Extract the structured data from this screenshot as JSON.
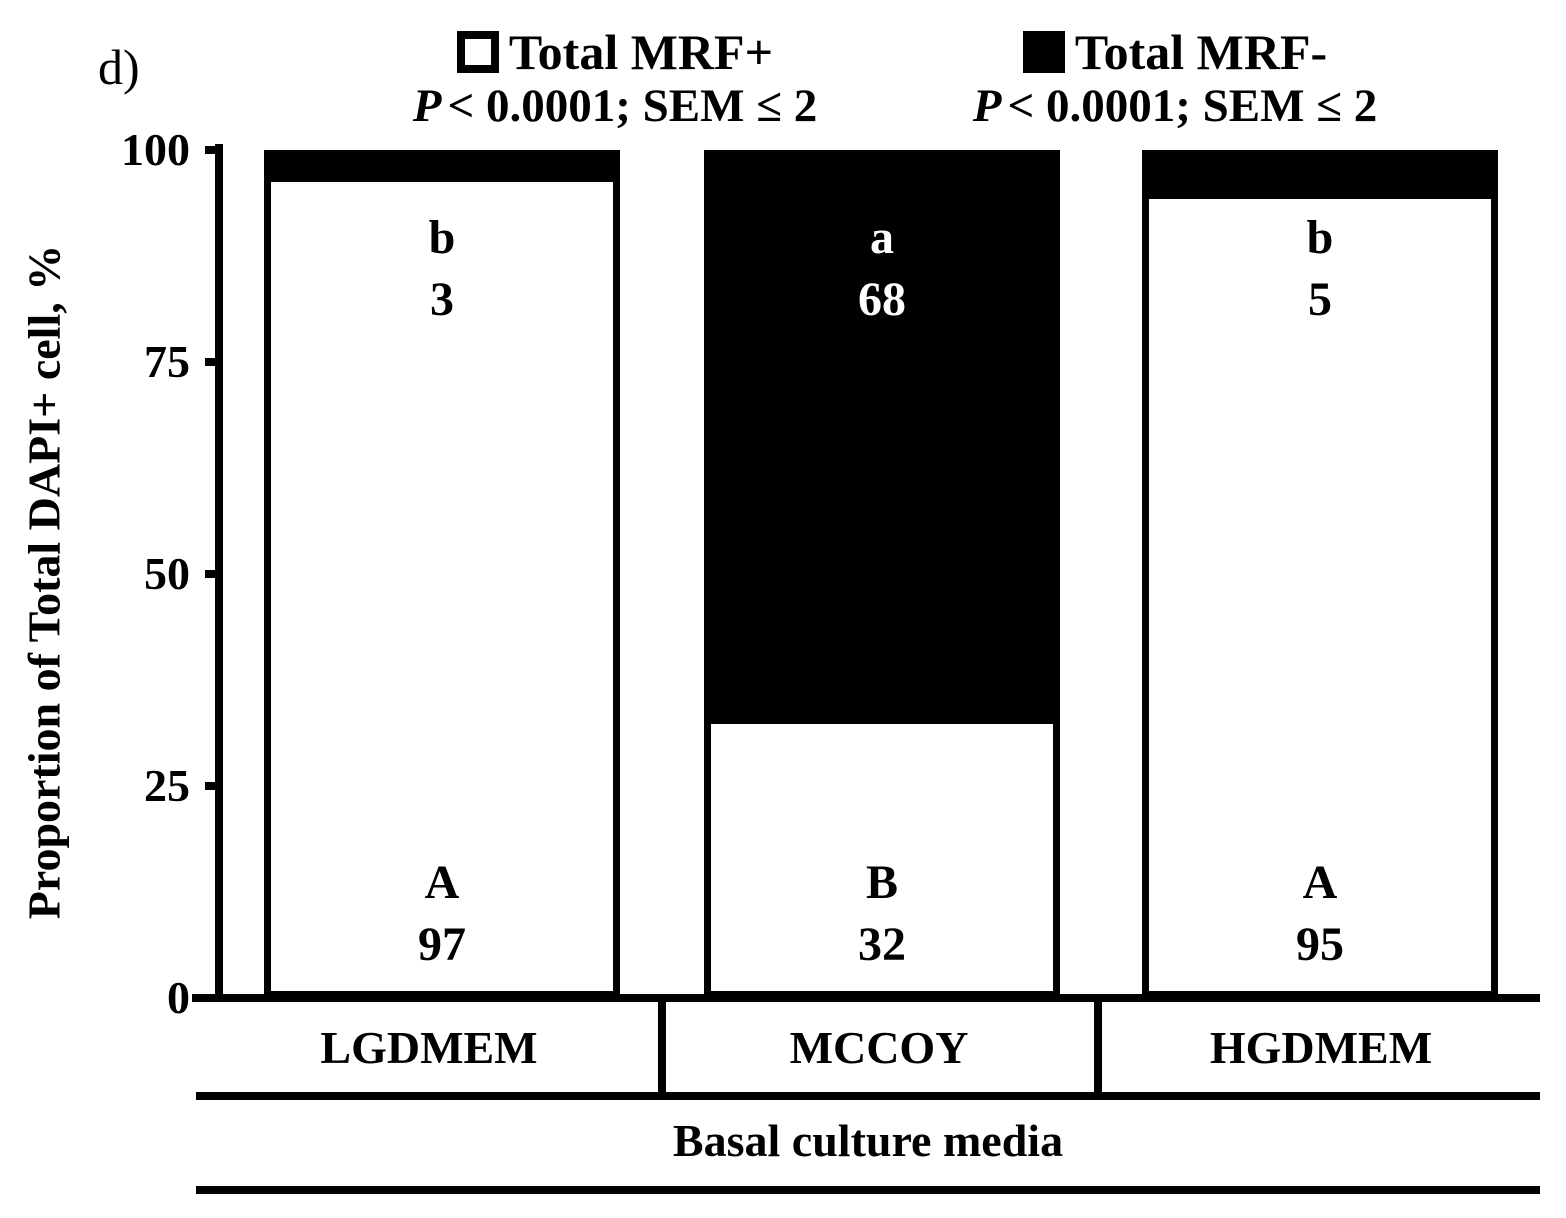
{
  "panel_label": "d)",
  "legend": {
    "entries": [
      {
        "label": "Total MRF+",
        "swatch": "white-square",
        "stat_p": "P",
        "stat_rest": "< 0.0001; SEM ≤ 2"
      },
      {
        "label": "Total MRF-",
        "swatch": "black-square",
        "stat_p": "P",
        "stat_rest": "< 0.0001; SEM ≤ 2"
      }
    ]
  },
  "y_axis": {
    "title": "Proportion of Total DAPI+ cell, %",
    "tick_labels": [
      "100",
      "75",
      "50",
      "25",
      "0"
    ]
  },
  "x_axis": {
    "categories": [
      "LGDMEM",
      "MCCOY",
      "HGDMEM"
    ],
    "group_label": "Basal culture media"
  },
  "bars": [
    {
      "category": "LGDMEM",
      "top_letter": "b",
      "top_value": "3",
      "bottom_letter": "A",
      "bottom_value": "97"
    },
    {
      "category": "MCCOY",
      "top_letter": "a",
      "top_value": "68",
      "bottom_letter": "B",
      "bottom_value": "32"
    },
    {
      "category": "HGDMEM",
      "top_letter": "b",
      "top_value": "5",
      "bottom_letter": "A",
      "bottom_value": "95"
    }
  ],
  "chart_data": {
    "type": "bar",
    "stacked": true,
    "categories": [
      "LGDMEM",
      "MCCOY",
      "HGDMEM"
    ],
    "series": [
      {
        "name": "Total MRF+",
        "color": "#ffffff",
        "values": [
          97,
          32,
          95
        ],
        "significance_letters": [
          "A",
          "B",
          "A"
        ]
      },
      {
        "name": "Total MRF-",
        "color": "#000000",
        "values": [
          3,
          68,
          5
        ],
        "significance_letters": [
          "b",
          "a",
          "b"
        ]
      }
    ],
    "title": "",
    "xlabel": "Basal culture media",
    "ylabel": "Proportion of Total DAPI+ cell, %",
    "ylim": [
      0,
      100
    ],
    "yticks": [
      0,
      25,
      50,
      75,
      100
    ],
    "grid": false,
    "legend_position": "top",
    "annotations": [
      "P < 0.0001; SEM ≤ 2",
      "P < 0.0001; SEM ≤ 2"
    ]
  },
  "colors": {
    "ink": "#000000",
    "background": "#ffffff"
  }
}
